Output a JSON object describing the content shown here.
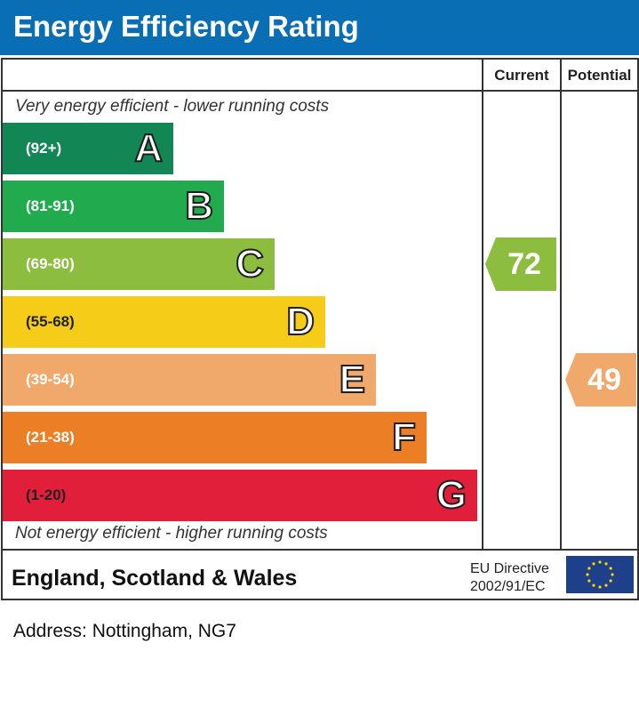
{
  "title": "Energy Efficiency Rating",
  "columns": {
    "current": "Current",
    "potential": "Potential"
  },
  "top_note": "Very energy efficient - lower running costs",
  "bottom_note": "Not energy efficient - higher running costs",
  "footer": {
    "country": "England, Scotland & Wales",
    "directive_line1": "EU Directive",
    "directive_line2": "2002/91/EC"
  },
  "address": "Address: Nottingham, NG7",
  "chart_data": {
    "type": "bar",
    "bands": [
      {
        "letter": "A",
        "range": "(92+)",
        "color": "#138655"
      },
      {
        "letter": "B",
        "range": "(81-91)",
        "color": "#22aa4f"
      },
      {
        "letter": "C",
        "range": "(69-80)",
        "color": "#8cbd3f"
      },
      {
        "letter": "D",
        "range": "(55-68)",
        "color": "#f5cc18"
      },
      {
        "letter": "E",
        "range": "(39-54)",
        "color": "#f1a86b"
      },
      {
        "letter": "F",
        "range": "(21-38)",
        "color": "#ec7f26"
      },
      {
        "letter": "G",
        "range": "(1-20)",
        "color": "#e11f3a"
      }
    ],
    "current": {
      "value": 72,
      "band": "C",
      "color": "#8cbd3f"
    },
    "potential": {
      "value": 49,
      "band": "E",
      "color": "#f1a86b"
    }
  }
}
